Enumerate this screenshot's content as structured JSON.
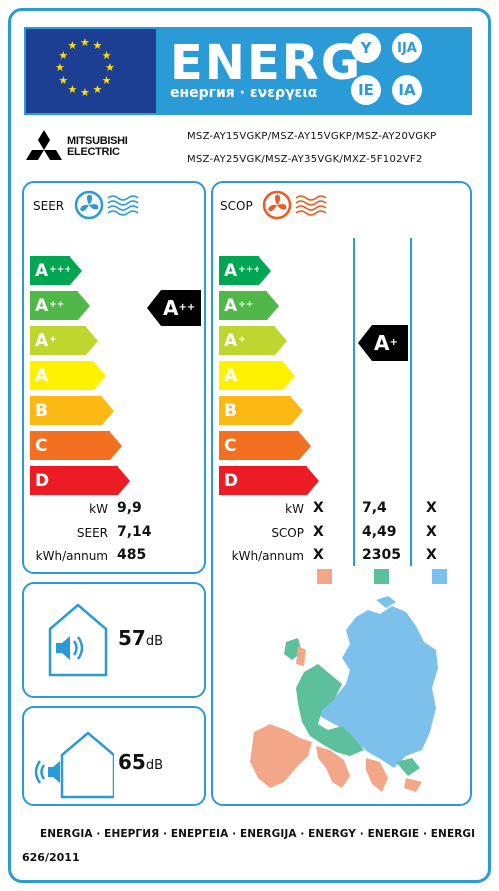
{
  "header": {
    "energy_title": "ENERG",
    "energy_subtitle": "енергия · ενεργεια",
    "suffixes": [
      "Y",
      "IJA",
      "IE",
      "IA"
    ]
  },
  "brand": {
    "name_line1": "MITSUBISHI",
    "name_line2": "ELECTRIC"
  },
  "models": {
    "line1": "MSZ-AY15VGKP/MSZ-AY15VGKP/MSZ-AY20VGKP",
    "line2": "MSZ-AY25VGK/MSZ-AY35VGK/MXZ-5F102VF2"
  },
  "scale": [
    {
      "letter": "A",
      "sup": "+++",
      "color": "#00a651"
    },
    {
      "letter": "A",
      "sup": "++",
      "color": "#50b848"
    },
    {
      "letter": "A",
      "sup": "+",
      "color": "#bed630"
    },
    {
      "letter": "A",
      "sup": "",
      "color": "#fff200"
    },
    {
      "letter": "B",
      "sup": "",
      "color": "#fdb913"
    },
    {
      "letter": "C",
      "sup": "",
      "color": "#f37021"
    },
    {
      "letter": "D",
      "sup": "",
      "color": "#ed1c24"
    }
  ],
  "seer": {
    "title": "SEER",
    "rating_letter": "A",
    "rating_sup": "++",
    "rows": [
      {
        "label": "kW",
        "value": "9,9"
      },
      {
        "label": "SEER",
        "value": "7,14"
      },
      {
        "label": "kWh/annum",
        "value": "485"
      }
    ]
  },
  "scop": {
    "title": "SCOP",
    "rating_letter": "A",
    "rating_sup": "+",
    "rows": [
      {
        "label": "kW",
        "values": [
          "X",
          "7,4",
          "X"
        ]
      },
      {
        "label": "SCOP",
        "values": [
          "X",
          "4,49",
          "X"
        ]
      },
      {
        "label": "kWh/annum",
        "values": [
          "X",
          "2305",
          "X"
        ]
      }
    ],
    "climate_colors": [
      "#f2a888",
      "#5cc09a",
      "#7cc1ec"
    ]
  },
  "noise": {
    "indoor": {
      "value": "57",
      "unit": "dB"
    },
    "outdoor": {
      "value": "65",
      "unit": "dB"
    }
  },
  "footer": {
    "languages": "ENERGIA · ЕНЕРГИЯ · ΕΝΕΡΓΕΙΑ · ENERGIJA · ENERGY · ENERGIE · ENERGI",
    "regulation": "626/2011"
  },
  "colors": {
    "frame_blue": "#2a9bd6",
    "eu_blue": "#1d3f93",
    "star_yellow": "#ffde00"
  }
}
